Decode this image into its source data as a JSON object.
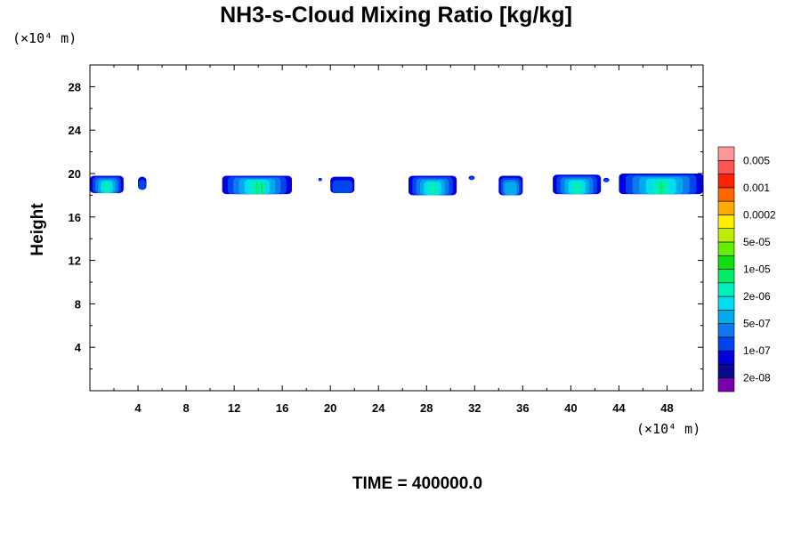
{
  "chart_data": {
    "type": "heatmap",
    "title": "NH3-s-Cloud Mixing Ratio [kg/kg]",
    "xlabel": "",
    "ylabel": "Height",
    "x_unit": "(×10⁴ m)",
    "y_unit": "(×10⁴ m)",
    "xlim": [
      0,
      51
    ],
    "ylim": [
      0,
      30
    ],
    "x_ticks": [
      4,
      8,
      12,
      16,
      20,
      24,
      28,
      32,
      36,
      40,
      44,
      48
    ],
    "y_ticks": [
      4,
      8,
      12,
      16,
      20,
      24,
      28
    ],
    "time_label": "TIME = 400000.0",
    "colorbar": {
      "colors": [
        "#7700aa",
        "#0a0a90",
        "#0000dd",
        "#0044ee",
        "#1177ee",
        "#00aaee",
        "#00ddee",
        "#00eebb",
        "#00ee66",
        "#11dd11",
        "#66ee00",
        "#bbee00",
        "#ffee00",
        "#ffaa00",
        "#ff6600",
        "#ff2200",
        "#ff5555",
        "#ff9999"
      ],
      "labels": [
        "2e-08",
        "1e-07",
        "5e-07",
        "2e-06",
        "1e-05",
        "5e-05",
        "0.0002",
        "0.001",
        "0.005"
      ]
    },
    "cloud_patches": [
      {
        "x": [
          0,
          2.8
        ],
        "top": 19.8,
        "bottom": 18.2,
        "peak": "2e-06"
      },
      {
        "x": [
          4.0,
          4.7
        ],
        "top": 19.7,
        "bottom": 18.5,
        "peak": "1e-07"
      },
      {
        "x": [
          11.0,
          16.8
        ],
        "top": 19.8,
        "bottom": 18.1,
        "peak": "1e-05"
      },
      {
        "x": [
          19.0,
          19.3
        ],
        "top": 19.6,
        "bottom": 19.3,
        "peak": "1e-07"
      },
      {
        "x": [
          20.0,
          22.0
        ],
        "top": 19.7,
        "bottom": 18.2,
        "peak": "1e-07"
      },
      {
        "x": [
          26.5,
          30.5
        ],
        "top": 19.8,
        "bottom": 18.0,
        "peak": "2e-06"
      },
      {
        "x": [
          31.5,
          32.0
        ],
        "top": 19.8,
        "bottom": 19.4,
        "peak": "1e-07"
      },
      {
        "x": [
          34.0,
          36.0
        ],
        "top": 19.8,
        "bottom": 18.0,
        "peak": "5e-07"
      },
      {
        "x": [
          38.5,
          42.5
        ],
        "top": 19.9,
        "bottom": 18.1,
        "peak": "2e-06"
      },
      {
        "x": [
          42.7,
          43.2
        ],
        "top": 19.6,
        "bottom": 19.2,
        "peak": "1e-07"
      },
      {
        "x": [
          44.0,
          51.0
        ],
        "top": 20.0,
        "bottom": 18.1,
        "peak": "5e-06"
      }
    ]
  }
}
